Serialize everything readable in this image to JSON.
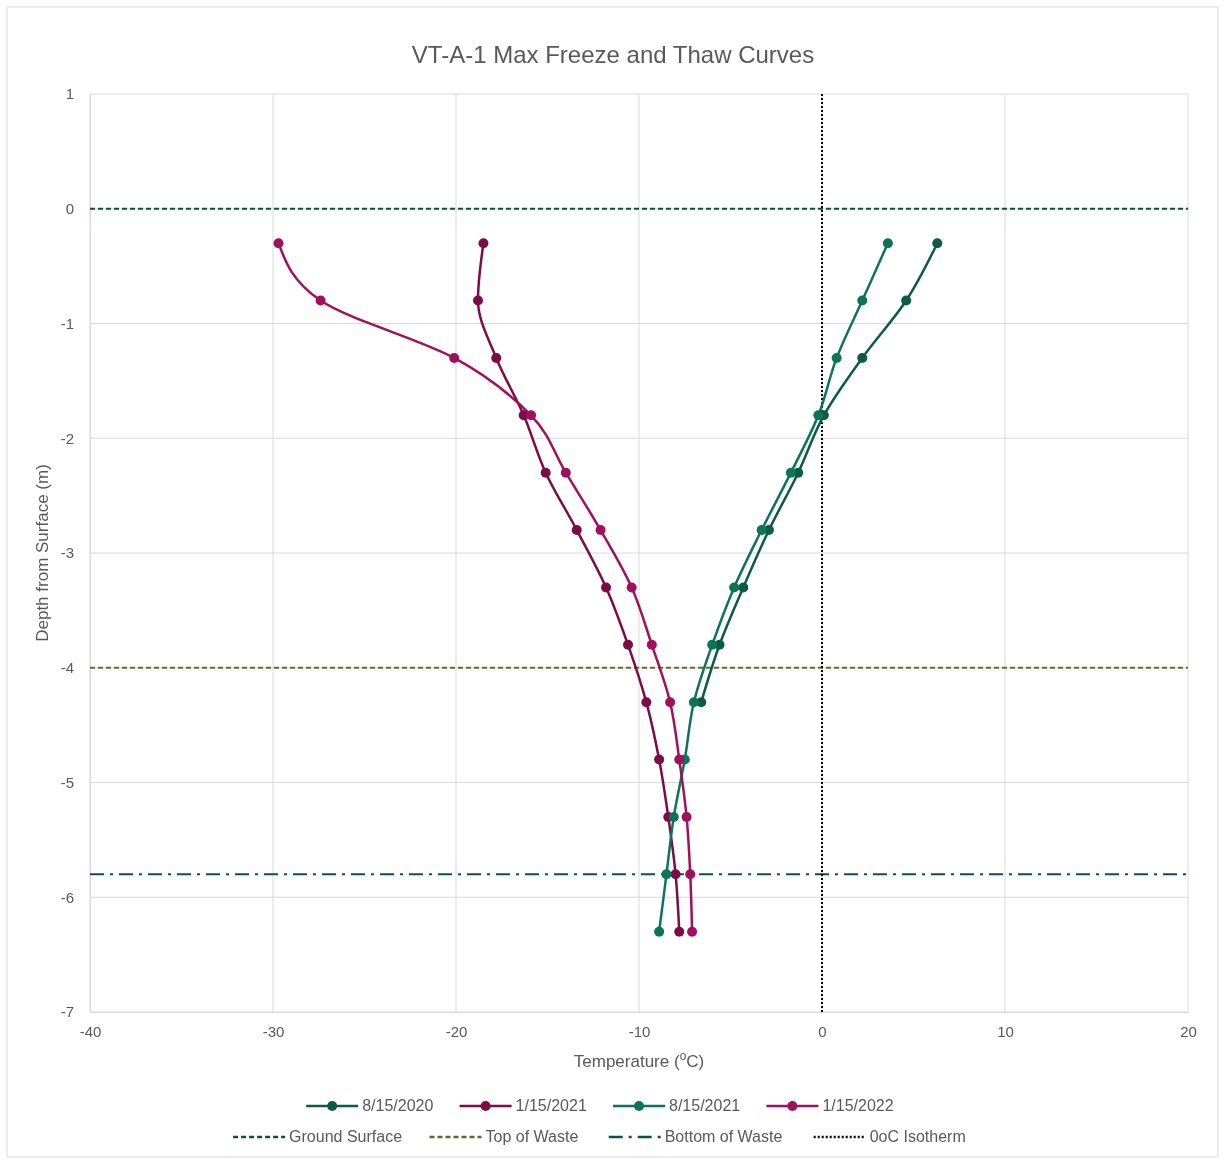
{
  "chart_data": {
    "type": "line",
    "title": "VT-A-1 Max Freeze and Thaw Curves",
    "xlabel": "Temperature ($^{o}$C)",
    "ylabel": "Depth from Surface (m)",
    "xlim": [
      -40,
      20
    ],
    "xticks": [
      -40,
      -30,
      -20,
      -10,
      0,
      10,
      20
    ],
    "ylim": [
      -7,
      1
    ],
    "yticks": [
      -7,
      -6,
      -5,
      -4,
      -3,
      -2,
      -1,
      0,
      1
    ],
    "grid": true,
    "legend": "bottom",
    "marker": "circle",
    "line_style": "solid",
    "series": [
      {
        "name": "8/15/2020",
        "color": "#0d5b40",
        "x": [
          6.3,
          4.6,
          2.2,
          0.1,
          -1.3,
          -2.9,
          -4.3,
          -5.6,
          -6.6,
          null,
          null,
          null,
          null
        ],
        "values": [
          -0.3,
          -0.8,
          -1.3,
          -1.8,
          -2.3,
          -2.8,
          -3.3,
          -3.8,
          -4.3,
          null,
          null,
          null,
          null
        ]
      },
      {
        "name": "1/15/2021",
        "color": "#7b0c47",
        "x": [
          -18.5,
          -18.8,
          -17.8,
          -16.3,
          -15.1,
          -13.4,
          -11.8,
          -10.6,
          -9.6,
          -8.9,
          -8.4,
          -8.0,
          -7.8
        ],
        "values": [
          -0.3,
          -0.8,
          -1.3,
          -1.8,
          -2.3,
          -2.8,
          -3.3,
          -3.8,
          -4.3,
          -4.8,
          -5.3,
          -5.8,
          -6.3
        ]
      },
      {
        "name": "8/15/2021",
        "color": "#0c7459",
        "x": [
          3.6,
          2.2,
          0.8,
          -0.2,
          -1.7,
          -3.3,
          -4.8,
          -6.0,
          -7.0,
          -7.5,
          -8.1,
          -8.5,
          -8.9
        ],
        "values": [
          -0.3,
          -0.8,
          -1.3,
          -1.8,
          -2.3,
          -2.8,
          -3.3,
          -3.8,
          -4.3,
          -4.8,
          -5.3,
          -5.8,
          -6.3
        ]
      },
      {
        "name": "1/15/2022",
        "color": "#a0105f",
        "x": [
          -29.7,
          -27.4,
          -20.1,
          -15.9,
          -14.0,
          -12.1,
          -10.4,
          -9.3,
          -8.3,
          -7.8,
          -7.4,
          -7.2,
          -7.1
        ],
        "values": [
          -0.3,
          -0.8,
          -1.3,
          -1.8,
          -2.3,
          -2.8,
          -3.3,
          -3.8,
          -4.3,
          -4.8,
          -5.3,
          -5.8,
          -6.3
        ]
      }
    ],
    "ref_lines": [
      {
        "axis": "y",
        "value": 0,
        "label": "Ground Surface",
        "color": "#0d4f3a",
        "line_style": "dashed"
      },
      {
        "axis": "y",
        "value": -4,
        "label": "Top of Waste",
        "color": "#5e6b2b",
        "line_style": "dashed"
      },
      {
        "axis": "y",
        "value": -5.8,
        "label": "Bottom of Waste",
        "color": "#0f4f4f",
        "line_style": "dashdot"
      },
      {
        "axis": "x",
        "value": 0,
        "label": "0oC Isotherm",
        "color": "#000000",
        "line_style": "dotted"
      }
    ]
  }
}
